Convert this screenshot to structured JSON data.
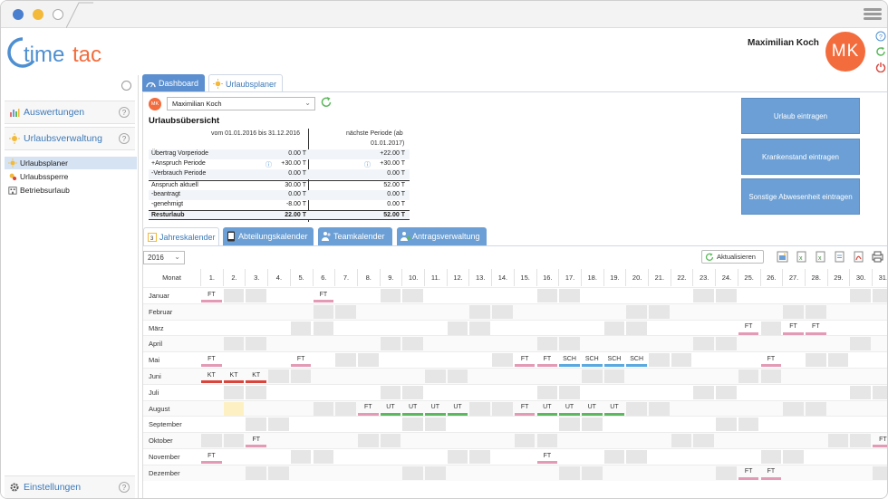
{
  "window": {
    "traffic": [
      "#4a7fcf",
      "#f3b93a",
      "#ffffff"
    ]
  },
  "logo": {
    "text": "timetac",
    "t_color": "#4e8fd1",
    "c_color": "#f36c3d"
  },
  "header": {
    "user_name": "Maximilian Koch",
    "avatar_initials": "MK",
    "avatar_color": "#f36c3d"
  },
  "sidebar": {
    "sections": [
      {
        "label": "Auswertungen",
        "icon": "chart-icon"
      },
      {
        "label": "Urlaubsverwaltung",
        "icon": "sun-icon"
      }
    ],
    "items": [
      {
        "label": "Urlaubsplaner",
        "icon": "sun-icon",
        "active": true
      },
      {
        "label": "Urlaubssperre",
        "icon": "block-sun-icon",
        "active": false
      },
      {
        "label": "Betriebsurlaub",
        "icon": "building-icon",
        "active": false
      }
    ],
    "footer": {
      "label": "Einstellungen",
      "icon": "gear-icon"
    }
  },
  "main_tabs": [
    {
      "label": "Dashboard",
      "active": false
    },
    {
      "label": "Urlaubsplaner",
      "active": true
    }
  ],
  "user_select": {
    "value": "Maximilian Koch",
    "avatar": "MK"
  },
  "overview": {
    "title": "Urlaubsübersicht",
    "col_a_header": "vom 01.01.2016 bis 31.12.2016",
    "col_b_header_line1": "nächste Periode (ab",
    "col_b_header_line2": "01.01.2017)",
    "rows": [
      {
        "label": "Übertrag Vorperiode",
        "a": "0.00 T",
        "b": "+22.00 T",
        "bold": false,
        "info": false
      },
      {
        "label": "+Anspruch Periode",
        "a": "+30.00 T",
        "b": "+30.00 T",
        "bold": false,
        "info": true
      },
      {
        "label": "-Verbrauch Periode",
        "a": "0.00 T",
        "b": "0.00 T",
        "bold": false,
        "info": false
      },
      {
        "label": "Anspruch aktuell",
        "a": "30.00 T",
        "b": "52.00 T",
        "bold": false,
        "info": false
      },
      {
        "label": "-beantragt",
        "a": "0.00 T",
        "b": "0.00 T",
        "bold": false,
        "info": false
      },
      {
        "label": "-genehmigt",
        "a": "-8.00 T",
        "b": "0.00 T",
        "bold": false,
        "info": false
      },
      {
        "label": "Resturlaub",
        "a": "22.00 T",
        "b": "52.00 T",
        "bold": true,
        "info": false
      }
    ]
  },
  "actions": [
    "Urlaub eintragen",
    "Krankenstand eintragen",
    "Sonstige Abwesenheit eintragen"
  ],
  "cal_tabs": [
    {
      "label": "Jahreskalender",
      "active": true
    },
    {
      "label": "Abteilungskalender",
      "active": false
    },
    {
      "label": "Teamkalender",
      "active": false
    },
    {
      "label": "Antragsverwaltung",
      "active": false
    }
  ],
  "calendar": {
    "year": "2016",
    "update_label": "Aktualisieren",
    "month_header": "Monat",
    "days": [
      "1.",
      "2.",
      "3.",
      "4.",
      "5.",
      "6.",
      "7.",
      "8.",
      "9.",
      "10.",
      "11.",
      "12.",
      "13.",
      "14.",
      "15.",
      "16.",
      "17.",
      "18.",
      "19.",
      "20.",
      "21.",
      "22.",
      "23.",
      "24.",
      "25.",
      "26.",
      "27.",
      "28.",
      "29.",
      "30.",
      "31."
    ],
    "months": [
      "Januar",
      "Februar",
      "März",
      "April",
      "Mai",
      "Juni",
      "Juli",
      "August",
      "September",
      "Oktober",
      "November",
      "Dezember"
    ],
    "colors": {
      "FT": "#e39ab5",
      "KT": "#d9453b",
      "SCH": "#5aa9e0",
      "UT": "#5cb85c",
      "weekend": "#e6e6e6",
      "highlight": "#fdf1c4"
    },
    "weekends": [
      [
        2,
        3,
        9,
        10,
        16,
        17,
        23,
        24,
        30,
        31
      ],
      [
        6,
        7,
        13,
        14,
        20,
        21,
        27,
        28
      ],
      [
        5,
        6,
        12,
        13,
        19,
        20,
        26,
        27
      ],
      [
        2,
        3,
        9,
        10,
        16,
        17,
        23,
        24,
        30
      ],
      [
        1,
        7,
        8,
        14,
        15,
        21,
        22,
        28,
        29
      ],
      [
        4,
        5,
        11,
        12,
        18,
        19,
        25,
        26
      ],
      [
        2,
        3,
        9,
        10,
        16,
        17,
        23,
        24,
        30,
        31
      ],
      [
        6,
        7,
        13,
        14,
        20,
        21,
        27,
        28
      ],
      [
        3,
        4,
        10,
        11,
        17,
        18,
        24,
        25
      ],
      [
        1,
        2,
        8,
        9,
        15,
        16,
        22,
        23,
        29,
        30
      ],
      [
        5,
        6,
        12,
        13,
        19,
        20,
        26,
        27
      ],
      [
        3,
        4,
        10,
        11,
        17,
        18,
        24,
        25,
        31
      ]
    ],
    "entries": [
      {
        "m": 0,
        "d": 1,
        "t": "FT"
      },
      {
        "m": 0,
        "d": 6,
        "t": "FT"
      },
      {
        "m": 2,
        "d": 25,
        "t": "FT"
      },
      {
        "m": 2,
        "d": 27,
        "t": "FT"
      },
      {
        "m": 2,
        "d": 28,
        "t": "FT"
      },
      {
        "m": 4,
        "d": 1,
        "t": "FT"
      },
      {
        "m": 4,
        "d": 5,
        "t": "FT"
      },
      {
        "m": 4,
        "d": 15,
        "t": "FT"
      },
      {
        "m": 4,
        "d": 16,
        "t": "FT"
      },
      {
        "m": 4,
        "d": 17,
        "t": "SCH"
      },
      {
        "m": 4,
        "d": 18,
        "t": "SCH"
      },
      {
        "m": 4,
        "d": 19,
        "t": "SCH"
      },
      {
        "m": 4,
        "d": 20,
        "t": "SCH"
      },
      {
        "m": 4,
        "d": 26,
        "t": "FT"
      },
      {
        "m": 5,
        "d": 1,
        "t": "KT"
      },
      {
        "m": 5,
        "d": 2,
        "t": "KT"
      },
      {
        "m": 5,
        "d": 3,
        "t": "KT"
      },
      {
        "m": 7,
        "d": 8,
        "t": "FT"
      },
      {
        "m": 7,
        "d": 9,
        "t": "UT"
      },
      {
        "m": 7,
        "d": 10,
        "t": "UT"
      },
      {
        "m": 7,
        "d": 11,
        "t": "UT"
      },
      {
        "m": 7,
        "d": 12,
        "t": "UT"
      },
      {
        "m": 7,
        "d": 15,
        "t": "FT"
      },
      {
        "m": 7,
        "d": 16,
        "t": "UT"
      },
      {
        "m": 7,
        "d": 17,
        "t": "UT"
      },
      {
        "m": 7,
        "d": 18,
        "t": "UT"
      },
      {
        "m": 7,
        "d": 19,
        "t": "UT"
      },
      {
        "m": 9,
        "d": 3,
        "t": "FT"
      },
      {
        "m": 9,
        "d": 31,
        "t": "FT"
      },
      {
        "m": 10,
        "d": 1,
        "t": "FT"
      },
      {
        "m": 10,
        "d": 16,
        "t": "FT"
      },
      {
        "m": 11,
        "d": 25,
        "t": "FT"
      },
      {
        "m": 11,
        "d": 26,
        "t": "FT"
      }
    ],
    "highlight": {
      "m": 7,
      "d": 2
    }
  }
}
